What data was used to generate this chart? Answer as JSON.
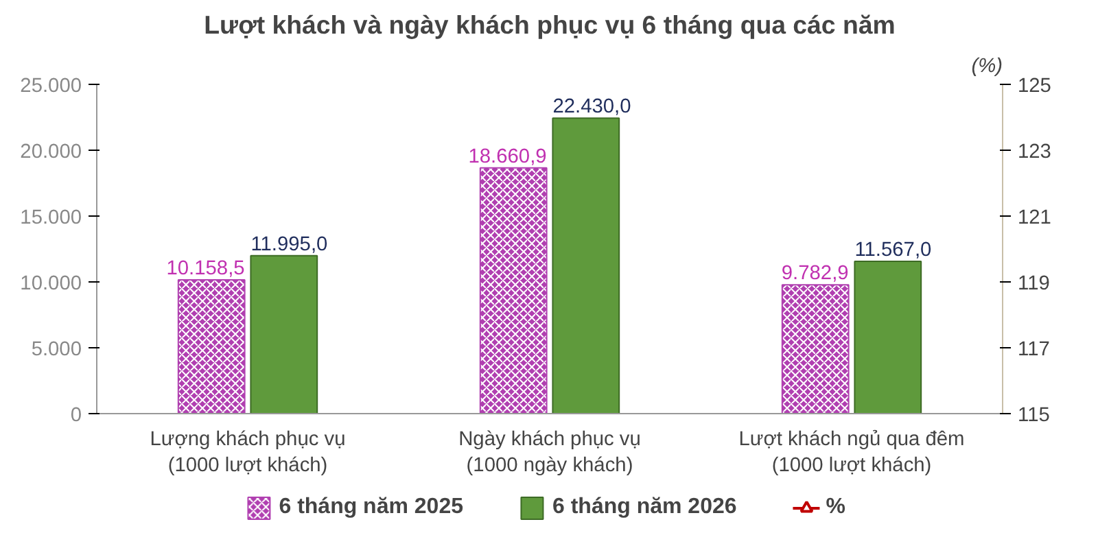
{
  "chart_data": {
    "type": "bar",
    "title": "Lượt khách và ngày khách phục vụ 6 tháng qua các năm",
    "categories": [
      "Lượng khách phục vụ\n(1000 lượt khách)",
      "Ngày khách phục vụ\n(1000 ngày khách)",
      "Lượt khách ngủ qua đêm\n(1000 lượt khách)"
    ],
    "series": [
      {
        "name": "6 tháng năm 2025",
        "color": "#b03fb0",
        "values": [
          10158.5,
          18660.9,
          9782.9
        ],
        "value_labels": [
          "10.158,5",
          "18.660,9",
          "9.782,9"
        ]
      },
      {
        "name": "6 tháng năm 2026",
        "color": "#5f9a3c",
        "values": [
          11995.0,
          22430.0,
          11567.0
        ],
        "value_labels": [
          "11.995,0",
          "22.430,0",
          "11.567,0"
        ]
      },
      {
        "name": "%",
        "type": "line",
        "color": "#c00000",
        "marker": "triangle",
        "values": [
          null,
          null,
          null
        ]
      }
    ],
    "ylim": [
      0,
      25000
    ],
    "yticks": [
      {
        "value": 0,
        "label": "0"
      },
      {
        "value": 5000,
        "label": "5.000"
      },
      {
        "value": 10000,
        "label": "10.000"
      },
      {
        "value": 15000,
        "label": "15.000"
      },
      {
        "value": 20000,
        "label": "20.000"
      },
      {
        "value": 25000,
        "label": "25.000"
      }
    ],
    "y2lim": [
      115,
      125
    ],
    "y2ticks": [
      115,
      117,
      119,
      121,
      123,
      125
    ],
    "y2label": "(%)",
    "grid": false,
    "legend": "bottom"
  }
}
